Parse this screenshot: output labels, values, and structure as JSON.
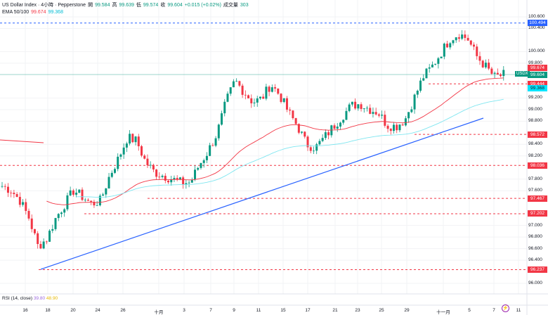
{
  "header": {
    "title": "US Dollar Index · 4小時 · Pepperstone",
    "open_label": "開",
    "open": "99.584",
    "high_label": "高",
    "high": "99.639",
    "low_label": "低",
    "low": "99.574",
    "close_label": "收",
    "close": "99.604",
    "change": "+0.015 (+0.02%)",
    "volume_label": "成交量",
    "volume": "303"
  },
  "ema": {
    "label": "EMA 50/100",
    "ema50": "99.674",
    "ema100": "99.368"
  },
  "rsi": {
    "label": "RSI (14, close)",
    "value1": "39.80",
    "value2": "48.90"
  },
  "symbol_tag": "USDX",
  "price_axis": {
    "ticks": [
      "100.600",
      "100.400",
      "100.000",
      "99.800",
      "99.200",
      "99.000",
      "98.800",
      "98.400",
      "98.200",
      "97.800",
      "97.600",
      "97.000",
      "96.800",
      "96.600",
      "96.400",
      "96.000"
    ],
    "range": [
      96.0,
      100.6
    ]
  },
  "price_tags": [
    {
      "value": "100.494",
      "color": "#2962ff"
    },
    {
      "value": "99.674",
      "color": "#f23645"
    },
    {
      "value": "99.604",
      "color": "#089981"
    },
    {
      "value": "99.444",
      "color": "#f23645"
    },
    {
      "value": "99.368",
      "color": "#00e5ff"
    },
    {
      "value": "98.572",
      "color": "#f23645"
    },
    {
      "value": "98.036",
      "color": "#f23645"
    },
    {
      "value": "97.467",
      "color": "#f23645"
    },
    {
      "value": "97.202",
      "color": "#f23645"
    },
    {
      "value": "96.237",
      "color": "#f23645"
    }
  ],
  "time_axis": [
    "16",
    "18",
    "20",
    "24",
    "26",
    "十月",
    "3",
    "7",
    "9",
    "11",
    "15",
    "17",
    "21",
    "23",
    "25",
    "29",
    "十一月",
    "5",
    "7",
    "11"
  ],
  "colors": {
    "up": "#089981",
    "down": "#f23645",
    "ema50": "#f23645",
    "ema100": "#7fe6f0",
    "trend": "#2962ff"
  },
  "closes": [
    97.68,
    97.61,
    97.43,
    97.13,
    96.64,
    96.77,
    97.13,
    97.37,
    97.61,
    97.49,
    97.37,
    97.43,
    97.86,
    98.16,
    98.52,
    98.46,
    98.1,
    97.92,
    97.86,
    97.8,
    97.74,
    97.74,
    98.04,
    98.28,
    98.59,
    99.13,
    99.5,
    99.31,
    99.13,
    99.19,
    99.44,
    99.25,
    98.95,
    98.71,
    98.4,
    98.34,
    98.52,
    98.71,
    98.89,
    99.07,
    99.1,
    99.01,
    98.95,
    98.73,
    98.71,
    98.83,
    99.19,
    99.56,
    99.74,
    99.98,
    100.22,
    100.31,
    100.22,
    99.92,
    99.74,
    99.56,
    99.6
  ]
}
